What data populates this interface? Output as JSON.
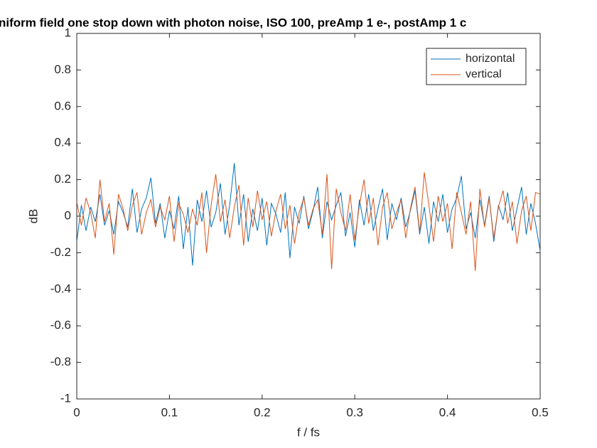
{
  "chart_data": {
    "type": "line",
    "title": "niform field one stop down with photon noise, ISO 100, preAmp 1 e-, postAmp 1 c",
    "xlabel": "f / fs",
    "ylabel": "dB",
    "x": [
      0,
      0.005,
      0.01,
      0.015,
      0.02,
      0.025,
      0.03,
      0.035,
      0.04,
      0.045,
      0.05,
      0.055,
      0.06,
      0.065,
      0.07,
      0.075,
      0.08,
      0.085,
      0.09,
      0.095,
      0.1,
      0.105,
      0.11,
      0.115,
      0.12,
      0.125,
      0.13,
      0.135,
      0.14,
      0.145,
      0.15,
      0.155,
      0.16,
      0.165,
      0.17,
      0.175,
      0.18,
      0.185,
      0.19,
      0.195,
      0.2,
      0.205,
      0.21,
      0.215,
      0.22,
      0.225,
      0.23,
      0.235,
      0.24,
      0.245,
      0.25,
      0.255,
      0.26,
      0.265,
      0.27,
      0.275,
      0.28,
      0.285,
      0.29,
      0.295,
      0.3,
      0.305,
      0.31,
      0.315,
      0.32,
      0.325,
      0.33,
      0.335,
      0.34,
      0.345,
      0.35,
      0.355,
      0.36,
      0.365,
      0.37,
      0.375,
      0.38,
      0.385,
      0.39,
      0.395,
      0.4,
      0.405,
      0.41,
      0.415,
      0.42,
      0.425,
      0.43,
      0.435,
      0.44,
      0.445,
      0.45,
      0.455,
      0.46,
      0.465,
      0.47,
      0.475,
      0.48,
      0.485,
      0.49,
      0.495,
      0.5
    ],
    "series": [
      {
        "name": "horizontal",
        "color": "#0072bd",
        "values": [
          -0.14,
          0.06,
          -0.08,
          0.05,
          -0.03,
          0.12,
          -0.05,
          0.03,
          -0.1,
          0.08,
          0.02,
          -0.06,
          0.15,
          -0.09,
          0.04,
          0.1,
          0.21,
          -0.04,
          0.07,
          -0.12,
          0.03,
          -0.07,
          0.11,
          -0.18,
          0.05,
          -0.27,
          0.09,
          -0.03,
          0.14,
          -0.06,
          0.02,
          0.18,
          -0.1,
          0.06,
          0.29,
          -0.05,
          0.12,
          -0.14,
          0.04,
          -0.08,
          0.1,
          -0.16,
          0.07,
          0.01,
          -0.09,
          0.13,
          -0.23,
          0.05,
          -0.04,
          0.11,
          -0.07,
          0.03,
          0.16,
          -0.12,
          0.08,
          -0.02,
          0.06,
          0.13,
          -0.11,
          0.02,
          -0.17,
          0.09,
          -0.05,
          0.12,
          -0.08,
          0.04,
          0.15,
          -0.13,
          0.07,
          -0.02,
          0.1,
          -0.06,
          0.03,
          0.14,
          -0.1,
          0.05,
          -0.15,
          0.08,
          -0.03,
          0.12,
          -0.09,
          0.04,
          0.1,
          0.22,
          -0.07,
          0.02,
          -0.12,
          0.09,
          -0.05,
          0.11,
          -0.14,
          0.06,
          -0.02,
          0.13,
          -0.08,
          0.04,
          0.16,
          -0.1,
          0.07,
          -0.04,
          -0.19
        ]
      },
      {
        "name": "vertical",
        "color": "#d95319",
        "values": [
          0.08,
          -0.05,
          0.1,
          0.02,
          -0.12,
          0.2,
          -0.03,
          0.07,
          -0.21,
          0.12,
          0.04,
          -0.08,
          0.06,
          0.13,
          -0.1,
          0.02,
          0.09,
          -0.06,
          0.05,
          -0.02,
          0.11,
          -0.14,
          0.07,
          0.01,
          -0.09,
          0.04,
          -0.05,
          0.13,
          -0.2,
          0.06,
          0.23,
          -0.03,
          0.09,
          -0.12,
          0.05,
          0.17,
          -0.16,
          0.1,
          -0.06,
          0.14,
          -0.02,
          0.08,
          -0.11,
          0.03,
          0.12,
          -0.07,
          0.06,
          -0.15,
          0.02,
          0.1,
          -0.05,
          0.04,
          0.09,
          -0.1,
          0.23,
          -0.29,
          0.15,
          0.02,
          -0.08,
          0.12,
          -0.13,
          0.06,
          0.2,
          -0.04,
          0.1,
          -0.16,
          0.05,
          0.13,
          -0.07,
          0.02,
          0.09,
          -0.12,
          0.04,
          0.16,
          -0.09,
          0.24,
          0.06,
          -0.14,
          0.11,
          -0.03,
          0.07,
          -0.18,
          0.13,
          0.02,
          -0.1,
          0.08,
          -0.3,
          0.15,
          -0.06,
          0.1,
          -0.12,
          0.05,
          0.14,
          -0.04,
          0.08,
          -0.15,
          0.03,
          0.11,
          -0.08,
          0.13,
          0.12
        ]
      }
    ],
    "xlim": [
      0,
      0.5
    ],
    "xticks": [
      0,
      0.1,
      0.2,
      0.3,
      0.4,
      0.5
    ],
    "ylim": [
      -1,
      1
    ],
    "yticks": [
      -1,
      -0.8,
      -0.6,
      -0.4,
      -0.2,
      0,
      0.2,
      0.4,
      0.6,
      0.8,
      1
    ],
    "grid": false,
    "legend": "northeast"
  }
}
